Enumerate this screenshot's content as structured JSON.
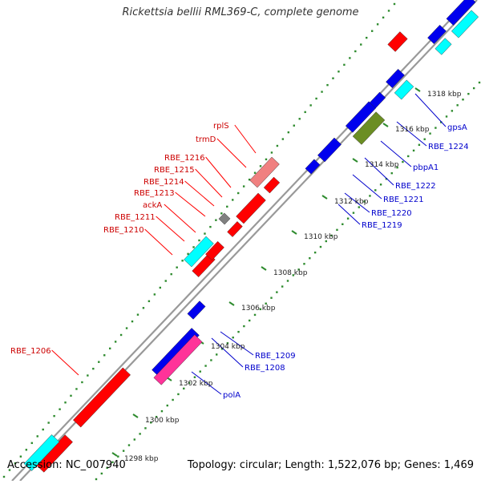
{
  "title": "Rickettsia bellii RML369-C, complete genome",
  "accession": "Accession: NC_007940",
  "summary": "Topology: circular; Length: 1,522,076 bp; Genes: 1,469",
  "colors": {
    "backbone": "#999999",
    "tick": "#2e8b2e",
    "red": "#ff0000",
    "pink": "#f08080",
    "blue": "#0000ee",
    "cyan": "#00ffff",
    "magenta": "#ff3399",
    "olive": "#6b8e23",
    "gray": "#808080",
    "label_left": "#cc0000",
    "label_right": "#0000cc"
  },
  "scale_labels": [
    "1298 kbp",
    "1300 kbp",
    "1302 kbp",
    "1304 kbp",
    "1306 kbp",
    "1308 kbp",
    "1310 kbp",
    "1312 kbp",
    "1314 kbp",
    "1316 kbp",
    "1318 kbp"
  ],
  "genes_left": [
    "RBE_1206",
    "RBE_1210",
    "RBE_1211",
    "ackA",
    "RBE_1213",
    "RBE_1214",
    "RBE_1215",
    "RBE_1216",
    "trmD",
    "rplS"
  ],
  "genes_right": [
    "polA",
    "RBE_1208",
    "RBE_1209",
    "RBE_1219",
    "RBE_1220",
    "RBE_1221",
    "RBE_1222",
    "pbpA1",
    "RBE_1224",
    "gpsA"
  ]
}
